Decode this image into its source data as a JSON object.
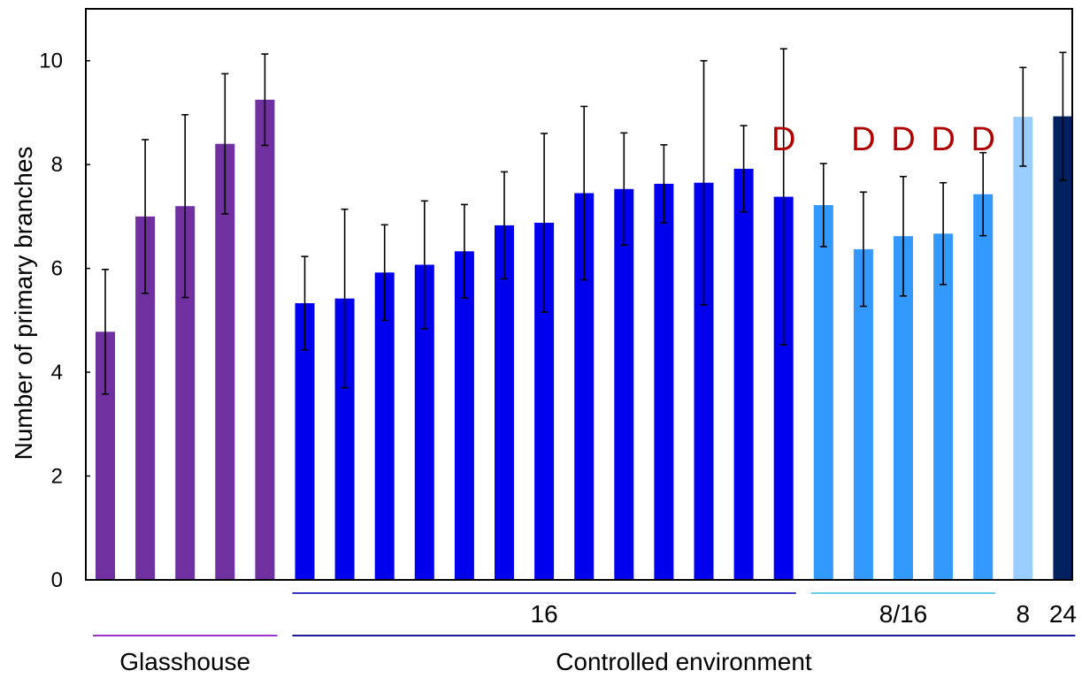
{
  "chart_data": {
    "type": "bar",
    "title": "",
    "xlabel": "",
    "ylabel": "Number of primary branches",
    "ylim": [
      0,
      11
    ],
    "yticks": [
      0,
      2,
      4,
      6,
      8,
      10
    ],
    "grid": false,
    "legend": "none",
    "values": [
      4.78,
      7.0,
      7.2,
      8.4,
      9.25,
      5.33,
      5.42,
      5.92,
      6.07,
      6.33,
      6.83,
      6.88,
      7.45,
      7.53,
      7.63,
      7.65,
      7.92,
      7.38,
      7.22,
      6.37,
      6.62,
      6.67,
      7.43,
      8.92,
      8.93
    ],
    "errors": [
      1.2,
      1.48,
      1.76,
      1.35,
      0.88,
      0.9,
      1.72,
      0.92,
      1.23,
      0.9,
      1.03,
      1.72,
      1.67,
      1.08,
      0.75,
      2.35,
      0.83,
      2.85,
      0.8,
      1.1,
      1.15,
      0.98,
      0.8,
      0.95,
      1.23
    ],
    "colors": [
      "#7030a0",
      "#7030a0",
      "#7030a0",
      "#7030a0",
      "#7030a0",
      "#0000ee",
      "#0000ee",
      "#0000ee",
      "#0000ee",
      "#0000ee",
      "#0000ee",
      "#0000ee",
      "#0000ee",
      "#0000ee",
      "#0000ee",
      "#0000ee",
      "#0000ee",
      "#0000ee",
      "#3399ff",
      "#3399ff",
      "#3399ff",
      "#3399ff",
      "#3399ff",
      "#99ccff",
      "#002060"
    ],
    "annotations": [
      {
        "bar": 17,
        "text": "D"
      },
      {
        "bar": 19,
        "text": "D"
      },
      {
        "bar": 20,
        "text": "D"
      },
      {
        "bar": 21,
        "text": "D"
      },
      {
        "bar": 22,
        "text": "D"
      }
    ],
    "photoperiod_groups": [
      {
        "label": "16",
        "from": 5,
        "to": 17,
        "color": "#3333cc"
      },
      {
        "label": "8/16",
        "from": 18,
        "to": 22,
        "color": "#66ccee"
      },
      {
        "label": "8",
        "from": 23,
        "to": 23,
        "color": ""
      },
      {
        "label": "24",
        "from": 24,
        "to": 24,
        "color": ""
      }
    ],
    "environment_groups": [
      {
        "label": "Glasshouse",
        "from": 0,
        "to": 4,
        "color": "#9933cc"
      },
      {
        "label": "Controlled environment",
        "from": 5,
        "to": 24,
        "color": "#1a1a99"
      }
    ]
  }
}
